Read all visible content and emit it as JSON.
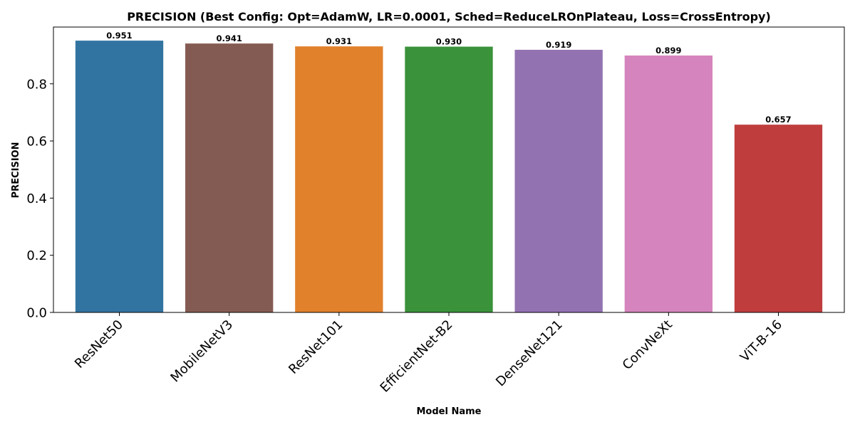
{
  "chart_data": {
    "type": "bar",
    "title": "PRECISION (Best Config: Opt=AdamW, LR=0.0001, Sched=ReduceLROnPlateau, Loss=CrossEntropy)",
    "xlabel": "Model Name",
    "ylabel": "PRECISION",
    "categories": [
      "ResNet50",
      "MobileNetV3",
      "ResNet101",
      "EfficientNet-B2",
      "DenseNet121",
      "ConvNeXt",
      "ViT-B-16"
    ],
    "values": [
      0.951,
      0.941,
      0.931,
      0.93,
      0.919,
      0.899,
      0.657
    ],
    "value_labels": [
      "0.951",
      "0.941",
      "0.931",
      "0.930",
      "0.919",
      "0.899",
      "0.657"
    ],
    "colors": [
      "#3274a1",
      "#845b53",
      "#e1812c",
      "#3a923a",
      "#9372b2",
      "#d584bd",
      "#c03d3e"
    ],
    "ylim": [
      0,
      0.9986
    ],
    "yticks": [
      0.0,
      0.2,
      0.4,
      0.6,
      0.8
    ],
    "ytick_labels": [
      "0.0",
      "0.2",
      "0.4",
      "0.6",
      "0.8"
    ],
    "grid": false,
    "legend": "none"
  }
}
